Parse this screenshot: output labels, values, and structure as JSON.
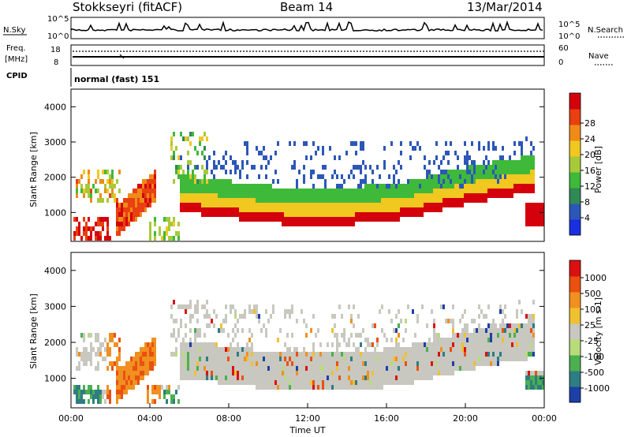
{
  "header": {
    "station": "Stokkseyri (fitACF)",
    "beam": "Beam 14",
    "date": "13/Mar/2014"
  },
  "strip_panels": {
    "nsky_label": "N.Sky",
    "nsearch_label": "N.Search",
    "noise_ticks_top": "10^5",
    "noise_ticks_bottom": "10^0",
    "freq_label_line1": "Freq.",
    "freq_label_line2": "[MHz]",
    "freq_ticks": [
      "18",
      "8"
    ],
    "nave_label": "Nave",
    "nave_ticks": [
      "60",
      "0"
    ],
    "cpid_label": "CPID",
    "cpid_value": "normal (fast) 151"
  },
  "chart_data": [
    {
      "type": "heatmap",
      "title": "",
      "ylabel": "Slant Range [km]",
      "xlabel": "",
      "yticks": [
        "1000",
        "2000",
        "3000",
        "4000"
      ],
      "ylim": [
        180,
        4500
      ],
      "colorbar": {
        "label": "Power [dB]",
        "ticks": [
          "4",
          "8",
          "12",
          "16",
          "20",
          "24",
          "28"
        ],
        "colors": [
          "#1a2fe0",
          "#2c57b8",
          "#2f8a55",
          "#3fb93a",
          "#a8c93a",
          "#f0c820",
          "#f08a18",
          "#e84010",
          "#d4000c"
        ]
      }
    },
    {
      "type": "heatmap",
      "title": "",
      "ylabel": "Slant Range [km]",
      "xlabel": "Time UT",
      "xticks": [
        "00:00",
        "04:00",
        "08:00",
        "12:00",
        "16:00",
        "20:00",
        "00:00"
      ],
      "yticks": [
        "1000",
        "2000",
        "3000",
        "4000"
      ],
      "ylim": [
        180,
        4500
      ],
      "colorbar": {
        "label": "Velocity [m s-1]",
        "ticks": [
          "1000",
          "500",
          "100",
          "25",
          "-25",
          "-100",
          "-500",
          "-1000"
        ],
        "colors": [
          "#1d3fa8",
          "#2e7d82",
          "#4caf50",
          "#b8dc7a",
          "#c8c8c0",
          "#f0c030",
          "#f09020",
          "#ea5010",
          "#dc1010"
        ]
      }
    }
  ]
}
